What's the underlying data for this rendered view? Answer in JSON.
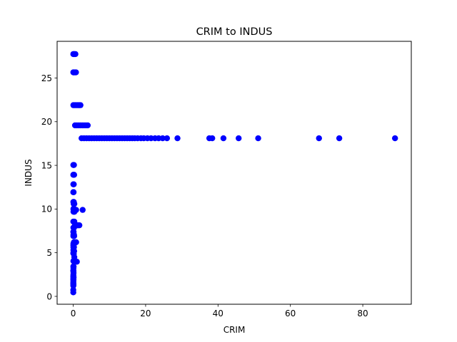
{
  "chart_data": {
    "type": "scatter",
    "title": "CRIM to INDUS",
    "xlabel": "CRIM",
    "ylabel": "INDUS",
    "xlim": [
      -4.45,
      93.4
    ],
    "ylim": [
      -0.9,
      29.2
    ],
    "xticks": [
      0,
      20,
      40,
      60,
      80
    ],
    "yticks": [
      0,
      5,
      10,
      15,
      20,
      25
    ],
    "xtick_labels": [
      "0",
      "20",
      "40",
      "60",
      "80"
    ],
    "ytick_labels": [
      "0",
      "5",
      "10",
      "15",
      "20",
      "25"
    ],
    "grid": false,
    "legend": "none",
    "marker_color": "#0000ff",
    "series": [
      {
        "points": [
          [
            0.02,
            27.74
          ],
          [
            0.15,
            27.74
          ],
          [
            0.35,
            27.74
          ],
          [
            0.6,
            27.74
          ],
          [
            0.03,
            25.65
          ],
          [
            0.12,
            25.65
          ],
          [
            0.3,
            25.65
          ],
          [
            0.55,
            25.65
          ],
          [
            0.75,
            25.65
          ],
          [
            0.04,
            21.89
          ],
          [
            0.3,
            21.89
          ],
          [
            0.6,
            21.89
          ],
          [
            0.9,
            21.89
          ],
          [
            1.2,
            21.89
          ],
          [
            1.5,
            21.89
          ],
          [
            1.7,
            21.89
          ],
          [
            2.0,
            21.89
          ],
          [
            0.5,
            19.58
          ],
          [
            1.0,
            19.58
          ],
          [
            1.5,
            19.58
          ],
          [
            2.0,
            19.58
          ],
          [
            2.5,
            19.58
          ],
          [
            3.0,
            19.58
          ],
          [
            3.5,
            19.58
          ],
          [
            4.0,
            19.58
          ],
          [
            2.3,
            18.1
          ],
          [
            3.0,
            18.1
          ],
          [
            3.7,
            18.1
          ],
          [
            4.4,
            18.1
          ],
          [
            5.1,
            18.1
          ],
          [
            5.8,
            18.1
          ],
          [
            6.5,
            18.1
          ],
          [
            7.2,
            18.1
          ],
          [
            7.9,
            18.1
          ],
          [
            8.6,
            18.1
          ],
          [
            9.3,
            18.1
          ],
          [
            10.0,
            18.1
          ],
          [
            10.7,
            18.1
          ],
          [
            11.4,
            18.1
          ],
          [
            12.1,
            18.1
          ],
          [
            12.8,
            18.1
          ],
          [
            13.5,
            18.1
          ],
          [
            14.2,
            18.1
          ],
          [
            14.9,
            18.1
          ],
          [
            15.6,
            18.1
          ],
          [
            16.3,
            18.1
          ],
          [
            17.0,
            18.1
          ],
          [
            17.8,
            18.1
          ],
          [
            18.7,
            18.1
          ],
          [
            19.5,
            18.1
          ],
          [
            20.5,
            18.1
          ],
          [
            21.5,
            18.1
          ],
          [
            22.6,
            18.1
          ],
          [
            23.6,
            18.1
          ],
          [
            24.7,
            18.1
          ],
          [
            25.9,
            18.1
          ],
          [
            28.8,
            18.1
          ],
          [
            37.6,
            18.1
          ],
          [
            38.4,
            18.1
          ],
          [
            41.5,
            18.1
          ],
          [
            45.7,
            18.1
          ],
          [
            51.1,
            18.1
          ],
          [
            67.9,
            18.1
          ],
          [
            73.5,
            18.1
          ],
          [
            88.9,
            18.1
          ],
          [
            0.03,
            15.04
          ],
          [
            0.1,
            15.04
          ],
          [
            0.2,
            15.04
          ],
          [
            0.02,
            13.92
          ],
          [
            0.1,
            13.92
          ],
          [
            0.25,
            13.92
          ],
          [
            0.03,
            12.83
          ],
          [
            0.15,
            12.83
          ],
          [
            0.02,
            11.93
          ],
          [
            0.1,
            11.93
          ],
          [
            0.04,
            10.81
          ],
          [
            0.15,
            10.81
          ],
          [
            0.3,
            10.59
          ],
          [
            0.12,
            10.59
          ],
          [
            0.05,
            10.01
          ],
          [
            0.2,
            10.01
          ],
          [
            0.5,
            9.9
          ],
          [
            0.8,
            9.9
          ],
          [
            2.6,
            9.9
          ],
          [
            0.07,
            9.69
          ],
          [
            0.2,
            9.69
          ],
          [
            0.35,
            9.69
          ],
          [
            0.03,
            8.56
          ],
          [
            0.15,
            8.56
          ],
          [
            0.3,
            8.56
          ],
          [
            0.5,
            8.14
          ],
          [
            0.8,
            8.14
          ],
          [
            1.1,
            8.14
          ],
          [
            1.4,
            8.14
          ],
          [
            1.7,
            8.14
          ],
          [
            0.05,
            7.87
          ],
          [
            0.1,
            7.87
          ],
          [
            0.22,
            7.87
          ],
          [
            0.02,
            7.38
          ],
          [
            0.1,
            7.38
          ],
          [
            0.2,
            7.07
          ],
          [
            0.06,
            7.07
          ],
          [
            0.04,
            6.91
          ],
          [
            0.12,
            6.91
          ],
          [
            0.25,
            6.91
          ],
          [
            0.5,
            6.2
          ],
          [
            0.8,
            6.2
          ],
          [
            0.2,
            6.2
          ],
          [
            0.06,
            6.06
          ],
          [
            0.03,
            5.86
          ],
          [
            0.12,
            5.86
          ],
          [
            0.04,
            5.64
          ],
          [
            0.2,
            5.64
          ],
          [
            0.05,
            5.32
          ],
          [
            0.1,
            5.19
          ],
          [
            0.25,
            5.19
          ],
          [
            0.04,
            4.95
          ],
          [
            0.03,
            4.93
          ],
          [
            0.15,
            4.86
          ],
          [
            0.3,
            4.49
          ],
          [
            0.05,
            4.05
          ],
          [
            0.4,
            3.97
          ],
          [
            0.7,
            3.97
          ],
          [
            1.0,
            3.97
          ],
          [
            0.03,
            3.44
          ],
          [
            0.1,
            3.41
          ],
          [
            0.06,
            3.24
          ],
          [
            0.04,
            2.97
          ],
          [
            0.02,
            2.95
          ],
          [
            0.05,
            2.89
          ],
          [
            0.08,
            2.68
          ],
          [
            0.03,
            2.46
          ],
          [
            0.06,
            2.31
          ],
          [
            0.02,
            2.24
          ],
          [
            0.1,
            2.18
          ],
          [
            0.04,
            2.03
          ],
          [
            0.03,
            2.02
          ],
          [
            0.02,
            1.91
          ],
          [
            0.06,
            1.89
          ],
          [
            0.03,
            1.69
          ],
          [
            0.01,
            1.52
          ],
          [
            0.04,
            1.47
          ],
          [
            0.02,
            1.38
          ],
          [
            0.05,
            1.32
          ],
          [
            0.03,
            1.25
          ],
          [
            0.02,
            1.22
          ],
          [
            0.01,
            0.74
          ],
          [
            0.02,
            0.46
          ]
        ]
      }
    ]
  }
}
